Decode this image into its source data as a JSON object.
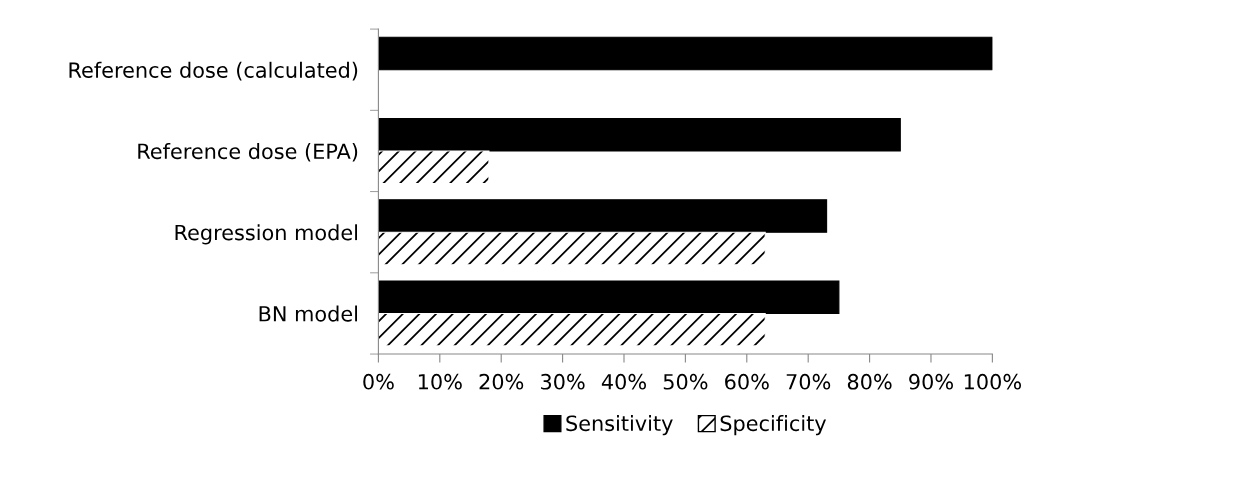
{
  "chart_data": {
    "type": "bar",
    "orientation": "horizontal",
    "categories": [
      "Reference dose (calculated)",
      "Reference dose (EPA)",
      "Regression model",
      "BN model"
    ],
    "series": [
      {
        "name": "Sensitivity",
        "color": "#000000",
        "values": [
          100,
          85,
          73,
          75
        ]
      },
      {
        "name": "Specificity",
        "color": "#ffffff",
        "values": [
          null,
          18,
          63,
          63
        ]
      }
    ],
    "xlim": [
      0,
      100
    ],
    "xticks": [
      {
        "value": 0,
        "label": "0%"
      },
      {
        "value": 10,
        "label": "10%"
      },
      {
        "value": 20,
        "label": "20%"
      },
      {
        "value": 30,
        "label": "30%"
      },
      {
        "value": 40,
        "label": "40%"
      },
      {
        "value": 50,
        "label": "50%"
      },
      {
        "value": 60,
        "label": "60%"
      },
      {
        "value": 70,
        "label": "70%"
      },
      {
        "value": 80,
        "label": "80%"
      },
      {
        "value": 90,
        "label": "90%"
      },
      {
        "value": 100,
        "label": "100%"
      }
    ],
    "grid": false,
    "legend": "bottom"
  }
}
